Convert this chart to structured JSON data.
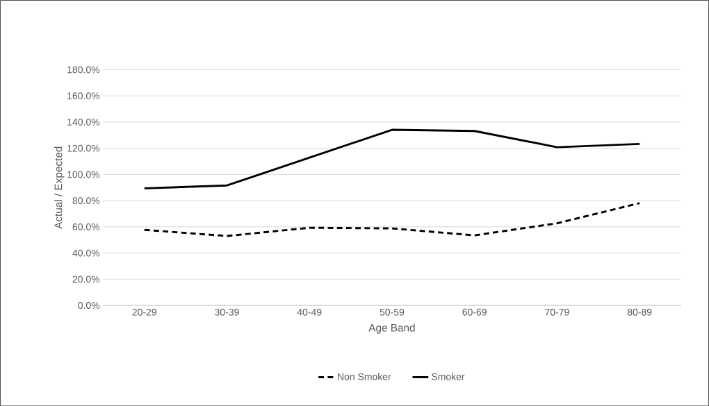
{
  "chart_data": {
    "type": "line",
    "xlabel": "Age Band",
    "ylabel": "Actual / Expected",
    "categories": [
      "20-29",
      "30-39",
      "40-49",
      "50-59",
      "60-69",
      "70-79",
      "80-89"
    ],
    "series": [
      {
        "name": "Non Smoker",
        "color": "#000000",
        "line_style": "dashed",
        "values": [
          57.7,
          53.0,
          59.3,
          58.8,
          53.5,
          62.7,
          78.1
        ]
      },
      {
        "name": "Smoker",
        "color": "#000000",
        "line_style": "solid",
        "values": [
          89.4,
          91.6,
          112.8,
          134.1,
          133.2,
          120.8,
          123.3
        ]
      }
    ],
    "ylim": [
      0,
      180
    ],
    "yticks": [
      {
        "value": 0,
        "label": "0.0%"
      },
      {
        "value": 20,
        "label": "20.0%"
      },
      {
        "value": 40,
        "label": "40.0%"
      },
      {
        "value": 60,
        "label": "60.0%"
      },
      {
        "value": 80,
        "label": "80.0%"
      },
      {
        "value": 100,
        "label": "100.0%"
      },
      {
        "value": 120,
        "label": "120.0%"
      },
      {
        "value": 140,
        "label": "140.0%"
      },
      {
        "value": 160,
        "label": "160.0%"
      },
      {
        "value": 180,
        "label": "180.0%"
      }
    ],
    "grid": "y",
    "legend": "bottom",
    "marker": "none"
  }
}
